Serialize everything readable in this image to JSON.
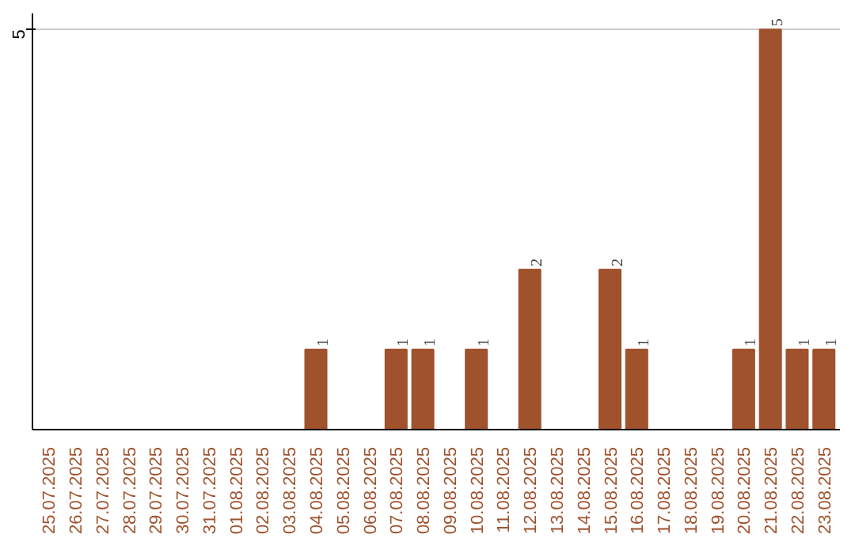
{
  "chart_data": {
    "type": "bar",
    "categories": [
      "25.07.2025",
      "26.07.2025",
      "27.07.2025",
      "28.07.2025",
      "29.07.2025",
      "30.07.2025",
      "31.07.2025",
      "01.08.2025",
      "02.08.2025",
      "03.08.2025",
      "04.08.2025",
      "05.08.2025",
      "06.08.2025",
      "07.08.2025",
      "08.08.2025",
      "09.08.2025",
      "10.08.2025",
      "11.08.2025",
      "12.08.2025",
      "13.08.2025",
      "14.08.2025",
      "15.08.2025",
      "16.08.2025",
      "17.08.2025",
      "18.08.2025",
      "19.08.2025",
      "20.08.2025",
      "21.08.2025",
      "22.08.2025",
      "23.08.2025"
    ],
    "values": [
      0,
      0,
      0,
      0,
      0,
      0,
      0,
      0,
      0,
      0,
      1,
      0,
      0,
      1,
      1,
      0,
      1,
      0,
      2,
      0,
      0,
      2,
      1,
      0,
      0,
      0,
      1,
      5,
      1,
      1
    ],
    "value_labels": [
      null,
      null,
      null,
      null,
      null,
      null,
      null,
      null,
      null,
      null,
      "1",
      null,
      null,
      "1",
      "1",
      null,
      "1",
      null,
      "2",
      null,
      null,
      "2",
      "1",
      null,
      null,
      null,
      "1",
      "5",
      "1",
      "1"
    ],
    "color": "#a0522d",
    "ylim": [
      0,
      5.2
    ],
    "yticks": [
      5
    ],
    "grid": "y"
  }
}
